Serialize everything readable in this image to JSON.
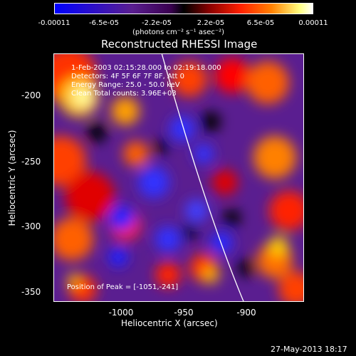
{
  "colorbar": {
    "ticks": [
      "-0.00011",
      "-6.5e-05",
      "-2.2e-05",
      "2.2e-05",
      "6.5e-05",
      "0.00011"
    ],
    "unit": "(photons cm⁻² s⁻¹ asec⁻²)"
  },
  "chart_data": {
    "type": "heatmap",
    "title": "Reconstructed RHESSI Image",
    "xlabel": "Heliocentric X (arcsec)",
    "ylabel": "Heliocentric Y (arcsec)",
    "xlim": [
      -1048,
      -877
    ],
    "ylim": [
      -360,
      -173
    ],
    "x_ticks": [
      "-1000",
      "-950",
      "-900"
    ],
    "y_ticks": [
      "-200",
      "-250",
      "-300",
      "-350"
    ],
    "colormap": "rainbow/hot diverging",
    "annotations": [
      "1-Feb-2003 02:15:28.000 to 02:19:18.000",
      "Detectors: 4F 5F 6F 7F 8F, Att 0",
      "Energy Range: 25.0 - 50.0 keV",
      "Clean     Total counts: 3.96E+03"
    ],
    "peak_text": "Position of Peak = [-1051,-241]"
  },
  "footer_date": "27-May-2013 18:17"
}
